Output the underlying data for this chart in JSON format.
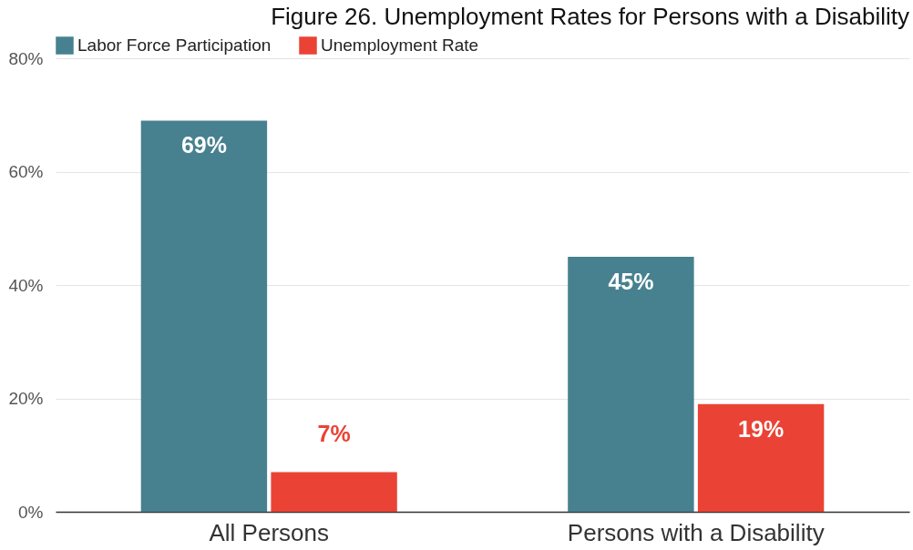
{
  "chart_data": {
    "type": "bar",
    "title": "Figure 26. Unemployment Rates for Persons with a Disability",
    "categories": [
      "All Persons",
      "Persons with a Disability"
    ],
    "series": [
      {
        "name": "Labor Force Participation",
        "color": "#47818f",
        "values": [
          69,
          45
        ],
        "value_labels": [
          "69%",
          "45%"
        ]
      },
      {
        "name": "Unemployment Rate",
        "color": "#ea4335",
        "values": [
          7,
          19
        ],
        "value_labels": [
          "7%",
          "19%"
        ]
      }
    ],
    "ylim": [
      0,
      80
    ],
    "yticks": [
      {
        "value": 0,
        "label": "0%"
      },
      {
        "value": 20,
        "label": "20%"
      },
      {
        "value": 40,
        "label": "40%"
      },
      {
        "value": 60,
        "label": "60%"
      },
      {
        "value": 80,
        "label": "80%"
      }
    ],
    "grid": "y",
    "legend": "top"
  }
}
